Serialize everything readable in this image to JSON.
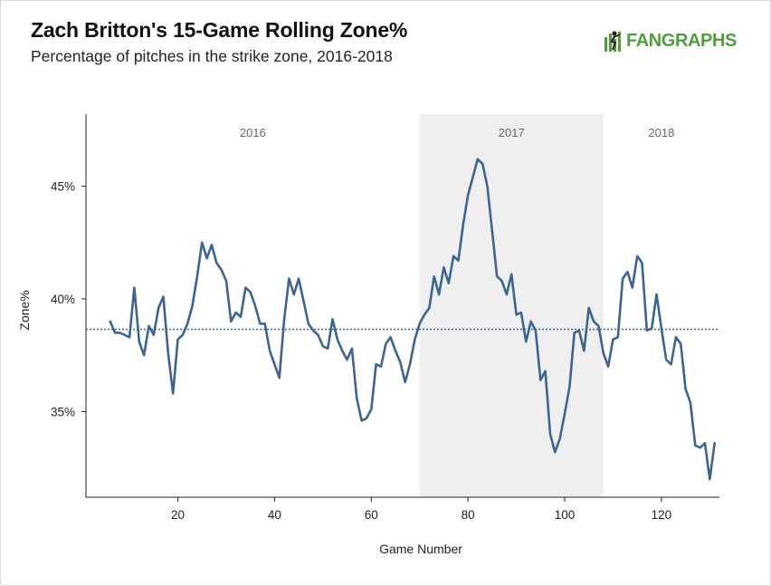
{
  "header": {
    "title": "Zach Britton's 15-Game Rolling Zone%",
    "subtitle": "Percentage of pitches in the strike zone, 2016-2018",
    "logo_text": "FANGRAPHS"
  },
  "colors": {
    "line": "#3d6590",
    "reference_line": "#3d6590",
    "season_shade": "#efefef",
    "axis": "#222222",
    "logo": "#4f9c3a"
  },
  "chart_data": {
    "type": "line",
    "title": "Zach Britton's 15-Game Rolling Zone%",
    "xlabel": "Game Number",
    "ylabel": "Zone%",
    "xlim": [
      1,
      132
    ],
    "ylim": [
      31.2,
      48.2
    ],
    "x_ticks": [
      20,
      40,
      60,
      80,
      100,
      120
    ],
    "y_ticks": [
      35,
      40,
      45
    ],
    "y_tick_labels": [
      "35%",
      "40%",
      "45%"
    ],
    "reference_line_y": 38.65,
    "seasons": [
      {
        "label": "2016",
        "start": 1,
        "end": 70,
        "shaded": false
      },
      {
        "label": "2017",
        "start": 70,
        "end": 108,
        "shaded": true
      },
      {
        "label": "2018",
        "start": 108,
        "end": 132,
        "shaded": false
      }
    ],
    "series": [
      {
        "x": [
          6,
          7,
          8,
          9,
          10,
          11,
          12,
          13,
          14,
          15,
          16,
          17,
          18,
          19,
          20,
          21,
          22,
          23,
          24,
          25,
          26,
          27,
          28,
          29,
          30,
          31,
          32,
          33,
          34,
          35,
          36,
          37,
          38,
          39,
          40,
          41,
          42,
          43,
          44,
          45,
          46,
          47,
          48,
          49,
          50,
          51,
          52,
          53,
          54,
          55,
          56,
          57,
          58,
          59,
          60,
          61,
          62,
          63,
          64,
          65,
          66,
          67,
          68,
          69,
          70,
          71,
          72,
          73,
          74,
          75,
          76,
          77,
          78,
          79,
          80,
          81,
          82,
          83,
          84,
          85,
          86,
          87,
          88,
          89,
          90,
          91,
          92,
          93,
          94,
          95,
          96,
          97,
          98,
          99,
          100,
          101,
          102,
          103,
          104,
          105,
          106,
          107,
          108,
          109,
          110,
          111,
          112,
          113,
          114,
          115,
          116,
          117,
          118,
          119,
          120,
          121,
          122,
          123,
          124,
          125,
          126,
          127,
          128,
          129,
          130,
          131
        ],
        "y": [
          39.0,
          38.5,
          38.5,
          38.4,
          38.3,
          40.5,
          38.1,
          37.5,
          38.8,
          38.4,
          39.6,
          40.1,
          37.6,
          35.8,
          38.2,
          38.4,
          38.9,
          39.7,
          41.0,
          42.5,
          41.8,
          42.4,
          41.6,
          41.3,
          40.8,
          39.0,
          39.4,
          39.2,
          40.5,
          40.3,
          39.7,
          38.9,
          38.9,
          37.7,
          37.1,
          36.5,
          39.1,
          40.9,
          40.2,
          40.9,
          39.9,
          38.9,
          38.6,
          38.4,
          37.9,
          37.8,
          39.1,
          38.2,
          37.7,
          37.3,
          37.8,
          35.6,
          34.6,
          34.7,
          35.1,
          37.1,
          37.0,
          38.0,
          38.3,
          37.7,
          37.2,
          36.3,
          37.1,
          38.2,
          38.9,
          39.3,
          39.6,
          41.0,
          40.2,
          41.4,
          40.7,
          41.9,
          41.7,
          43.3,
          44.6,
          45.4,
          46.2,
          46.0,
          45.0,
          43.0,
          41.0,
          40.8,
          40.2,
          41.1,
          39.3,
          39.4,
          38.1,
          39.0,
          38.6,
          36.4,
          36.8,
          34.0,
          33.2,
          33.8,
          34.9,
          36.1,
          38.5,
          38.6,
          37.7,
          39.6,
          39.0,
          38.8,
          37.6,
          37.0,
          38.2,
          38.3,
          40.9,
          41.2,
          40.5,
          41.9,
          41.6,
          38.6,
          38.7,
          40.2,
          38.7,
          37.3,
          37.1,
          38.3,
          38.0,
          36.0,
          35.4,
          33.5,
          33.4,
          33.6,
          32.0,
          33.6
        ]
      }
    ]
  }
}
